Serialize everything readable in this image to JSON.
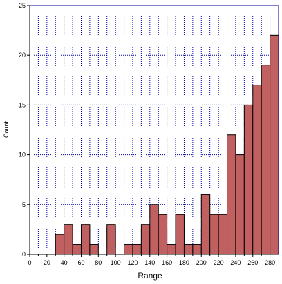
{
  "chart_data": {
    "type": "bar",
    "title": "",
    "xlabel": "Range",
    "ylabel": "Count",
    "xlim": [
      0,
      290
    ],
    "ylim": [
      0,
      25
    ],
    "bin_width": 10,
    "x_ticks": [
      "0",
      "20",
      "40",
      "60",
      "80",
      "100",
      "120",
      "140",
      "160",
      "180",
      "200",
      "220",
      "240",
      "260",
      "280"
    ],
    "y_ticks": [
      "0",
      "5",
      "10",
      "15",
      "20",
      "25"
    ],
    "grid": true,
    "legend": "none",
    "bins": [
      {
        "start": 30,
        "value": 2
      },
      {
        "start": 40,
        "value": 3
      },
      {
        "start": 50,
        "value": 1
      },
      {
        "start": 60,
        "value": 3
      },
      {
        "start": 70,
        "value": 1
      },
      {
        "start": 90,
        "value": 3
      },
      {
        "start": 110,
        "value": 1
      },
      {
        "start": 120,
        "value": 1
      },
      {
        "start": 130,
        "value": 3
      },
      {
        "start": 140,
        "value": 5
      },
      {
        "start": 150,
        "value": 4
      },
      {
        "start": 160,
        "value": 1
      },
      {
        "start": 170,
        "value": 4
      },
      {
        "start": 180,
        "value": 1
      },
      {
        "start": 190,
        "value": 1
      },
      {
        "start": 200,
        "value": 6
      },
      {
        "start": 210,
        "value": 4
      },
      {
        "start": 220,
        "value": 4
      },
      {
        "start": 230,
        "value": 12
      },
      {
        "start": 240,
        "value": 10
      },
      {
        "start": 250,
        "value": 15
      },
      {
        "start": 260,
        "value": 17
      },
      {
        "start": 270,
        "value": 19
      },
      {
        "start": 280,
        "value": 22
      }
    ],
    "colors": {
      "bar_fill": "#c06060",
      "bar_stroke": "#000000",
      "grid": "#0000a0",
      "axis": "#000000"
    }
  }
}
